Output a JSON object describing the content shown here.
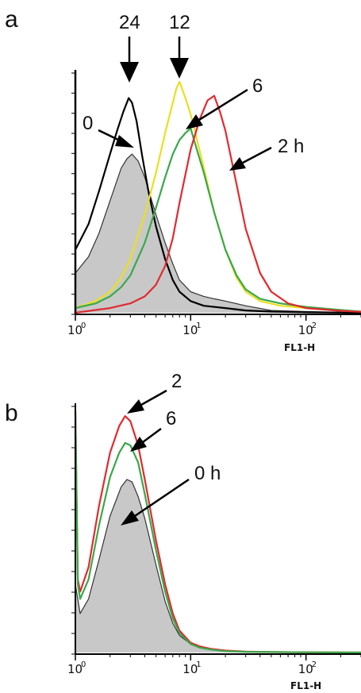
{
  "chart_data": [
    {
      "panel": "a",
      "type": "line",
      "xlabel": "FL1-H",
      "xscale": "log",
      "xlim": [
        1,
        300
      ],
      "ylim": [
        0,
        1
      ],
      "x_ticks": [
        {
          "value": 1,
          "base": "10",
          "exp": "0"
        },
        {
          "value": 10,
          "base": "10",
          "exp": "1"
        },
        {
          "value": 100,
          "base": "10",
          "exp": "2"
        }
      ],
      "series": [
        {
          "name": "0",
          "color": "#8a8a8a",
          "filled": true,
          "x": [
            1.0,
            1.3,
            1.6,
            2.0,
            2.5,
            2.8,
            3.1,
            3.5,
            4.0,
            5.0,
            6.0,
            7.0,
            8.0,
            10.0,
            13.0,
            16.0,
            20.0,
            30.0,
            50.0,
            100.0,
            300.0
          ],
          "y": [
            0.17,
            0.24,
            0.34,
            0.48,
            0.62,
            0.66,
            0.68,
            0.65,
            0.58,
            0.42,
            0.3,
            0.21,
            0.14,
            0.09,
            0.07,
            0.06,
            0.05,
            0.03,
            0.01,
            0.005,
            0.0
          ]
        },
        {
          "name": "24",
          "color": "#000000",
          "filled": false,
          "x": [
            1.0,
            1.3,
            1.6,
            2.0,
            2.3,
            2.6,
            2.9,
            3.1,
            3.4,
            3.8,
            4.3,
            5.0,
            6.0,
            7.0,
            8.0,
            10.0,
            13.0,
            20.0,
            30.0,
            50.0,
            100.0,
            300.0
          ],
          "y": [
            0.27,
            0.38,
            0.52,
            0.68,
            0.78,
            0.86,
            0.92,
            0.9,
            0.82,
            0.67,
            0.52,
            0.37,
            0.23,
            0.14,
            0.09,
            0.05,
            0.03,
            0.02,
            0.01,
            0.005,
            0.002,
            0.0
          ]
        },
        {
          "name": "12",
          "color": "#e8e020",
          "filled": false,
          "x": [
            1.0,
            1.5,
            2.0,
            2.5,
            3.0,
            4.0,
            5.0,
            6.0,
            7.0,
            7.5,
            8.0,
            9.0,
            10.0,
            11.0,
            13.0,
            16.0,
            20.0,
            25.0,
            30.0,
            40.0,
            60.0,
            100.0,
            200.0,
            300.0
          ],
          "y": [
            0.02,
            0.05,
            0.09,
            0.15,
            0.23,
            0.42,
            0.6,
            0.77,
            0.9,
            0.96,
            0.99,
            0.92,
            0.85,
            0.77,
            0.62,
            0.43,
            0.27,
            0.15,
            0.09,
            0.05,
            0.03,
            0.02,
            0.01,
            0.005
          ]
        },
        {
          "name": "6",
          "color": "#3aa84a",
          "filled": false,
          "x": [
            1.0,
            1.5,
            2.0,
            2.5,
            3.0,
            4.0,
            5.0,
            6.0,
            7.0,
            8.0,
            9.0,
            10.0,
            11.0,
            13.0,
            16.0,
            20.0,
            25.0,
            30.0,
            40.0,
            60.0,
            100.0,
            200.0,
            300.0
          ],
          "y": [
            0.02,
            0.04,
            0.07,
            0.11,
            0.16,
            0.3,
            0.45,
            0.58,
            0.68,
            0.74,
            0.77,
            0.79,
            0.72,
            0.6,
            0.43,
            0.27,
            0.16,
            0.1,
            0.06,
            0.04,
            0.025,
            0.012,
            0.005
          ]
        },
        {
          "name": "2 h",
          "color": "#e02a30",
          "filled": false,
          "x": [
            1.0,
            2.0,
            3.0,
            4.0,
            5.0,
            6.0,
            7.0,
            8.0,
            10.0,
            12.0,
            14.0,
            16.0,
            18.0,
            20.0,
            25.0,
            30.0,
            40.0,
            50.0,
            70.0,
            100.0,
            200.0,
            300.0
          ],
          "y": [
            0.0,
            0.02,
            0.04,
            0.07,
            0.12,
            0.2,
            0.32,
            0.47,
            0.7,
            0.83,
            0.91,
            0.93,
            0.86,
            0.78,
            0.55,
            0.36,
            0.17,
            0.09,
            0.04,
            0.02,
            0.008,
            0.004
          ]
        }
      ],
      "annotations": [
        "24",
        "12",
        "6",
        "0",
        "2 h"
      ]
    },
    {
      "panel": "b",
      "type": "line",
      "xlabel": "FL1-H",
      "xscale": "log",
      "xlim": [
        1,
        300
      ],
      "ylim": [
        0,
        1
      ],
      "x_ticks": [
        {
          "value": 1,
          "base": "10",
          "exp": "0"
        },
        {
          "value": 10,
          "base": "10",
          "exp": "1"
        },
        {
          "value": 100,
          "base": "10",
          "exp": "2"
        }
      ],
      "series": [
        {
          "name": "0 h",
          "color": "#8a8a8a",
          "filled": true,
          "x": [
            1.0,
            1.1,
            1.3,
            1.6,
            2.0,
            2.5,
            2.8,
            3.1,
            3.5,
            4.0,
            5.0,
            6.0,
            7.0,
            8.0,
            10.0,
            12.0,
            15.0,
            20.0,
            30.0,
            50.0,
            100.0,
            300.0
          ],
          "y": [
            0.28,
            0.16,
            0.22,
            0.38,
            0.56,
            0.68,
            0.71,
            0.7,
            0.64,
            0.55,
            0.36,
            0.21,
            0.12,
            0.07,
            0.035,
            0.02,
            0.012,
            0.008,
            0.004,
            0.002,
            0.001,
            0.0
          ]
        },
        {
          "name": "2",
          "color": "#e02a30",
          "filled": false,
          "x": [
            1.0,
            1.05,
            1.1,
            1.3,
            1.6,
            2.0,
            2.4,
            2.7,
            3.0,
            3.5,
            4.0,
            5.0,
            6.0,
            7.0,
            8.0,
            10.0,
            12.0,
            15.0,
            20.0,
            30.0,
            50.0,
            100.0,
            300.0
          ],
          "y": [
            0.99,
            0.3,
            0.25,
            0.35,
            0.6,
            0.82,
            0.93,
            0.97,
            0.95,
            0.85,
            0.71,
            0.46,
            0.28,
            0.16,
            0.09,
            0.04,
            0.025,
            0.015,
            0.008,
            0.004,
            0.002,
            0.001,
            0.0
          ]
        },
        {
          "name": "6",
          "color": "#3aa84a",
          "filled": false,
          "x": [
            1.0,
            1.05,
            1.1,
            1.3,
            1.6,
            2.0,
            2.4,
            2.7,
            3.0,
            3.5,
            4.0,
            5.0,
            6.0,
            7.0,
            8.0,
            10.0,
            12.0,
            15.0,
            20.0,
            30.0,
            50.0,
            100.0,
            300.0
          ],
          "y": [
            0.99,
            0.28,
            0.22,
            0.3,
            0.52,
            0.72,
            0.82,
            0.86,
            0.85,
            0.78,
            0.65,
            0.42,
            0.25,
            0.14,
            0.08,
            0.035,
            0.02,
            0.012,
            0.006,
            0.003,
            0.002,
            0.001,
            0.0
          ]
        }
      ],
      "annotations": [
        "2",
        "6",
        "0 h"
      ]
    }
  ]
}
